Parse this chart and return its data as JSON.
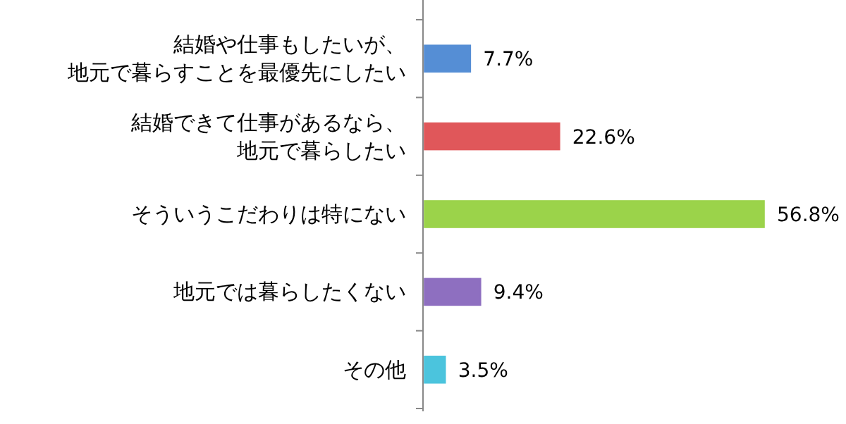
{
  "chart_data": {
    "type": "bar",
    "orientation": "horizontal",
    "tick_labels": "y",
    "categories": [
      "結婚や仕事もしたいが、地元で暮らすことを最優先にしたい",
      "結婚できて仕事があるなら、地元で暮らしたい",
      "そういうこだわりは特にない",
      "地元では暮らしたくない",
      "その他"
    ],
    "values": [
      7.7,
      22.6,
      56.8,
      9.4,
      3.5
    ],
    "colors": [
      "#558ed5",
      "#e0575a",
      "#9bd34a",
      "#8e6fc0",
      "#4bc4dd"
    ],
    "value_labels": [
      "7.7%",
      "22.6%",
      "56.8%",
      "9.4%",
      "3.5%"
    ]
  }
}
